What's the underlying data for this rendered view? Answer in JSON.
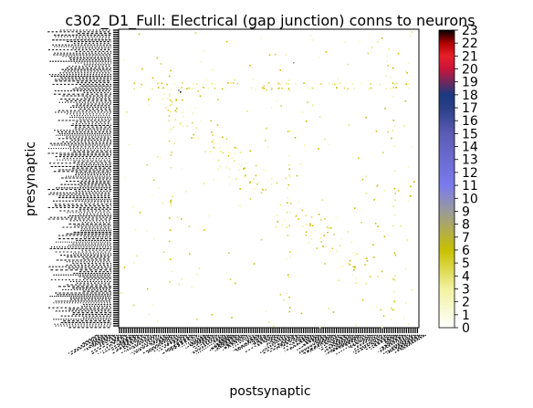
{
  "chart_data": {
    "type": "heatmap",
    "title": "c302_D1_Full: Electrical (gap junction) conns to neurons",
    "xlabel": "postsynaptic",
    "ylabel": "presynaptic",
    "grid": false,
    "colorbar": {
      "min": 0,
      "max": 23,
      "ticks": [
        "0",
        "1",
        "2",
        "3",
        "4",
        "5",
        "6",
        "7",
        "8",
        "9",
        "10",
        "11",
        "12",
        "13",
        "14",
        "15",
        "16",
        "17",
        "18",
        "19",
        "20",
        "21",
        "22",
        "23"
      ],
      "colormap_stops": [
        {
          "v": 0,
          "color": "#ffffff"
        },
        {
          "v": 3,
          "color": "#f2f2a0"
        },
        {
          "v": 6,
          "color": "#c8c000"
        },
        {
          "v": 9,
          "color": "#9a9a9a"
        },
        {
          "v": 11,
          "color": "#7a7aee"
        },
        {
          "v": 15,
          "color": "#5c5cb4"
        },
        {
          "v": 17,
          "color": "#2a3e86"
        },
        {
          "v": 18,
          "color": "#1a3a80"
        },
        {
          "v": 20,
          "color": "#c8143a"
        },
        {
          "v": 21,
          "color": "#e8202a"
        },
        {
          "v": 22,
          "color": "#b00000"
        },
        {
          "v": 23,
          "color": "#000000"
        }
      ]
    },
    "note_tick_labels": "neuron names along both axes are illegibly dense in the source"
  }
}
